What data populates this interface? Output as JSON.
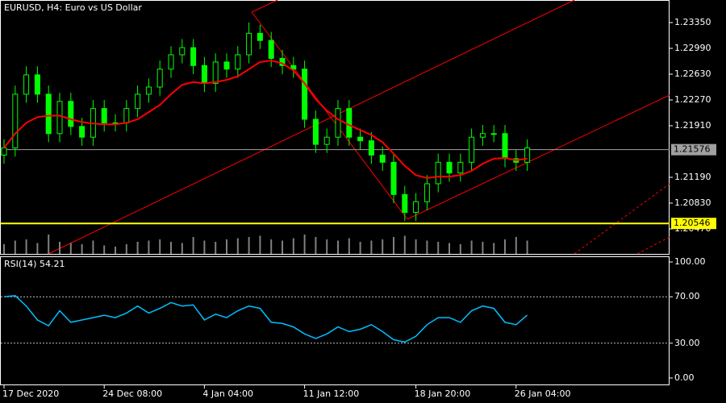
{
  "chart_data": {
    "type": "candlestick",
    "title": "EURUSD, H4:  Euro vs US Dollar",
    "categories": [
      "17 Dec 2020",
      null,
      null,
      null,
      null,
      null,
      null,
      null,
      null,
      "24 Dec 08:00",
      null,
      null,
      null,
      null,
      null,
      null,
      null,
      null,
      "4 Jan 04:00",
      null,
      null,
      null,
      null,
      null,
      null,
      null,
      null,
      "11 Jan 12:00",
      null,
      null,
      null,
      null,
      null,
      null,
      null,
      null,
      null,
      "18 Jan 20:00",
      null,
      null,
      null,
      null,
      null,
      null,
      null,
      null,
      "26 Jan 04:00",
      null
    ],
    "open": [
      1.215,
      1.216,
      1.2235,
      1.2262,
      1.2235,
      1.218,
      1.2225,
      1.219,
      1.2175,
      1.2215,
      1.2195,
      1.2195,
      1.2215,
      1.2235,
      1.2245,
      1.227,
      1.229,
      1.23,
      1.2275,
      1.225,
      1.228,
      1.227,
      1.229,
      1.232,
      1.231,
      1.2285,
      1.2275,
      1.227,
      1.22,
      1.2165,
      1.2175,
      1.2215,
      1.2175,
      1.217,
      1.215,
      1.214,
      1.2095,
      1.207,
      1.2085,
      1.211,
      1.214,
      1.2125,
      1.214,
      1.2175,
      1.218,
      1.218,
      1.2145,
      1.214
    ],
    "high": [
      1.2172,
      1.2247,
      1.2274,
      1.2274,
      1.2247,
      1.2237,
      1.2237,
      1.2202,
      1.2227,
      1.2227,
      1.2207,
      1.2227,
      1.2247,
      1.2257,
      1.2282,
      1.2302,
      1.2312,
      1.2312,
      1.2287,
      1.2292,
      1.2292,
      1.2302,
      1.2335,
      1.2332,
      1.2322,
      1.2297,
      1.2287,
      1.2282,
      1.2212,
      1.2187,
      1.2227,
      1.2227,
      1.2187,
      1.2182,
      1.2162,
      1.2152,
      1.2107,
      1.2097,
      1.2122,
      1.2152,
      1.2152,
      1.2152,
      1.2187,
      1.2192,
      1.2192,
      1.2192,
      1.2157,
      1.2172
    ],
    "low": [
      1.2138,
      1.2148,
      1.2223,
      1.2223,
      1.2168,
      1.2168,
      1.2178,
      1.2163,
      1.2163,
      1.2183,
      1.2183,
      1.2183,
      1.2203,
      1.2223,
      1.2233,
      1.2258,
      1.2278,
      1.2263,
      1.2238,
      1.2238,
      1.2258,
      1.2258,
      1.2278,
      1.2298,
      1.2273,
      1.2263,
      1.2258,
      1.2188,
      1.2153,
      1.2153,
      1.2163,
      1.2163,
      1.2158,
      1.2138,
      1.2128,
      1.2083,
      1.2058,
      1.2058,
      1.2073,
      1.2098,
      1.2113,
      1.2113,
      1.2128,
      1.2163,
      1.2168,
      1.2133,
      1.2128,
      1.2128
    ],
    "close": [
      1.216,
      1.2235,
      1.2262,
      1.2235,
      1.218,
      1.2225,
      1.219,
      1.2175,
      1.2215,
      1.2195,
      1.2195,
      1.2215,
      1.2235,
      1.2245,
      1.227,
      1.229,
      1.23,
      1.2275,
      1.225,
      1.228,
      1.227,
      1.229,
      1.232,
      1.231,
      1.2285,
      1.2275,
      1.227,
      1.22,
      1.2165,
      1.2175,
      1.2215,
      1.2175,
      1.217,
      1.215,
      1.214,
      1.2095,
      1.207,
      1.2085,
      1.211,
      1.214,
      1.2125,
      1.214,
      1.2175,
      1.218,
      1.218,
      1.2145,
      1.214,
      1.216
    ],
    "color": "#00ff00",
    "ma": {
      "color": "#ff0000",
      "values": [
        1.216,
        1.218,
        1.2195,
        1.2203,
        1.2205,
        1.2205,
        1.22,
        1.2196,
        1.2194,
        1.2193,
        1.2193,
        1.2195,
        1.22,
        1.221,
        1.222,
        1.2235,
        1.2248,
        1.2252,
        1.225,
        1.2252,
        1.2255,
        1.226,
        1.227,
        1.228,
        1.2282,
        1.2278,
        1.2268,
        1.225,
        1.2228,
        1.2212,
        1.22,
        1.2192,
        1.2185,
        1.2178,
        1.2168,
        1.2152,
        1.2135,
        1.2122,
        1.2118,
        1.212,
        1.212,
        1.2122,
        1.2128,
        1.2138,
        1.2145,
        1.2146,
        1.2143,
        1.2145
      ]
    },
    "volume": {
      "color": "#808080",
      "ylim": [
        0,
        100
      ],
      "values": [
        40,
        55,
        60,
        45,
        80,
        50,
        45,
        40,
        55,
        35,
        30,
        40,
        50,
        55,
        60,
        50,
        45,
        70,
        55,
        50,
        60,
        65,
        70,
        75,
        60,
        55,
        65,
        80,
        70,
        60,
        55,
        65,
        50,
        55,
        60,
        70,
        75,
        60,
        55,
        50,
        45,
        40,
        55,
        50,
        45,
        60,
        70,
        55
      ]
    },
    "ylim": [
      1.20121,
      1.23665
    ],
    "yticks": [
      {
        "value": 1.2047,
        "label": "1.20470"
      },
      {
        "value": 1.2083,
        "label": "1.20830"
      },
      {
        "value": 1.2119,
        "label": "1.21190"
      },
      {
        "value": 1.2191,
        "label": "1.21910"
      },
      {
        "value": 1.2227,
        "label": "1.22270"
      },
      {
        "value": 1.2263,
        "label": "1.22630"
      },
      {
        "value": 1.2299,
        "label": "1.22990"
      },
      {
        "value": 1.2335,
        "label": "1.23350"
      }
    ],
    "bid_line": {
      "value": 1.21576,
      "color": "#a0a0a0"
    },
    "level_line": {
      "value": 1.20546,
      "color": "#ffff00"
    },
    "rsi": {
      "title": "RSI(14) 54.21",
      "color": "#00bfff",
      "values": [
        70,
        71,
        62,
        50,
        45,
        58,
        48,
        50,
        52,
        54,
        52,
        56,
        62,
        56,
        60,
        65,
        62,
        63,
        50,
        55,
        52,
        58,
        62,
        60,
        48,
        47,
        44,
        38,
        34,
        38,
        44,
        40,
        42,
        46,
        40,
        33,
        31,
        36,
        46,
        52,
        52,
        48,
        58,
        62,
        60,
        48,
        46,
        54.21
      ],
      "ylim": [
        -6.25,
        104.86
      ],
      "yticks": [
        {
          "value": 0,
          "label": "0.00"
        },
        {
          "value": 30,
          "label": "30.00"
        },
        {
          "value": 70,
          "label": "70.00"
        },
        {
          "value": 100,
          "label": "100.00"
        }
      ],
      "levels": [
        30,
        70
      ]
    }
  }
}
